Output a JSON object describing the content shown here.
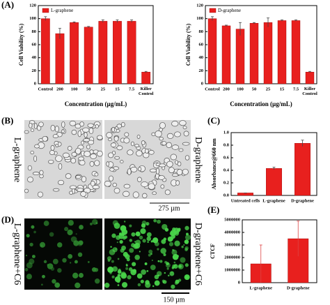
{
  "chart_data": [
    {
      "type": "bar",
      "xlabel": "Concentration (µg/mL)",
      "ylabel": "Cell Viability (%)",
      "categories": [
        "Control",
        "200",
        "100",
        "50",
        "25",
        "15",
        "7.5",
        "Killer Control"
      ],
      "series": [
        {
          "name": "L-graphene",
          "color": "#e8201e",
          "values": [
            100,
            77,
            94,
            87,
            96,
            96,
            96,
            18
          ],
          "errors": [
            3,
            8,
            1,
            1,
            2,
            2,
            2,
            1
          ]
        }
      ],
      "ylim": [
        0,
        120
      ],
      "yticks": [
        0,
        20,
        40,
        60,
        80,
        100,
        120
      ]
    },
    {
      "type": "bar",
      "xlabel": "Concentration (µg/mL)",
      "ylabel": "Cell Viability (%)",
      "categories": [
        "Control",
        "200",
        "100",
        "50",
        "25",
        "15",
        "7.5",
        "Killer Control"
      ],
      "series": [
        {
          "name": "D-graphene",
          "color": "#e8201e",
          "values": [
            100,
            89,
            84,
            93,
            94,
            97,
            97,
            18
          ],
          "errors": [
            3,
            1,
            10,
            1,
            7,
            1,
            1,
            1
          ]
        }
      ],
      "ylim": [
        0,
        120
      ],
      "yticks": [
        0,
        20,
        40,
        60,
        80,
        100,
        120
      ]
    },
    {
      "type": "bar",
      "ylabel": "Absorbance@660 nm",
      "categories": [
        "Untreated cells",
        "L-graphene",
        "D-graphene"
      ],
      "values": [
        0.04,
        0.43,
        0.83
      ],
      "errors": [
        0,
        0.02,
        0.05
      ],
      "color": "#e8201e",
      "ylim": [
        0,
        1.0
      ],
      "yticks": [
        {
          "value": 0,
          "label": "0.0"
        },
        0.2,
        0.4,
        0.6,
        0.8,
        {
          "value": 1.0,
          "label": "1.0"
        }
      ]
    },
    {
      "type": "bar",
      "ylabel": "CTCF",
      "categories": [
        "L-graphene",
        "D-graphene"
      ],
      "values": [
        1500000,
        3500000
      ],
      "errors": [
        1500000,
        1400000
      ],
      "color": "#e8201e",
      "ylim": [
        0,
        5000000
      ],
      "yticks": [
        0,
        1000000,
        2000000,
        3000000,
        4000000,
        5000000
      ]
    }
  ],
  "panels": {
    "a": "(A)",
    "b": "(B)",
    "c": "(C)",
    "d": "(D)",
    "e": "(E)"
  },
  "images": {
    "b": {
      "left_label": "L-graphene",
      "right_label": "D-graphene",
      "scale": "275 µm"
    },
    "d": {
      "left_label": "L-graphene+C6",
      "right_label": "D-graphene+C6",
      "scale": "150 µm"
    }
  }
}
